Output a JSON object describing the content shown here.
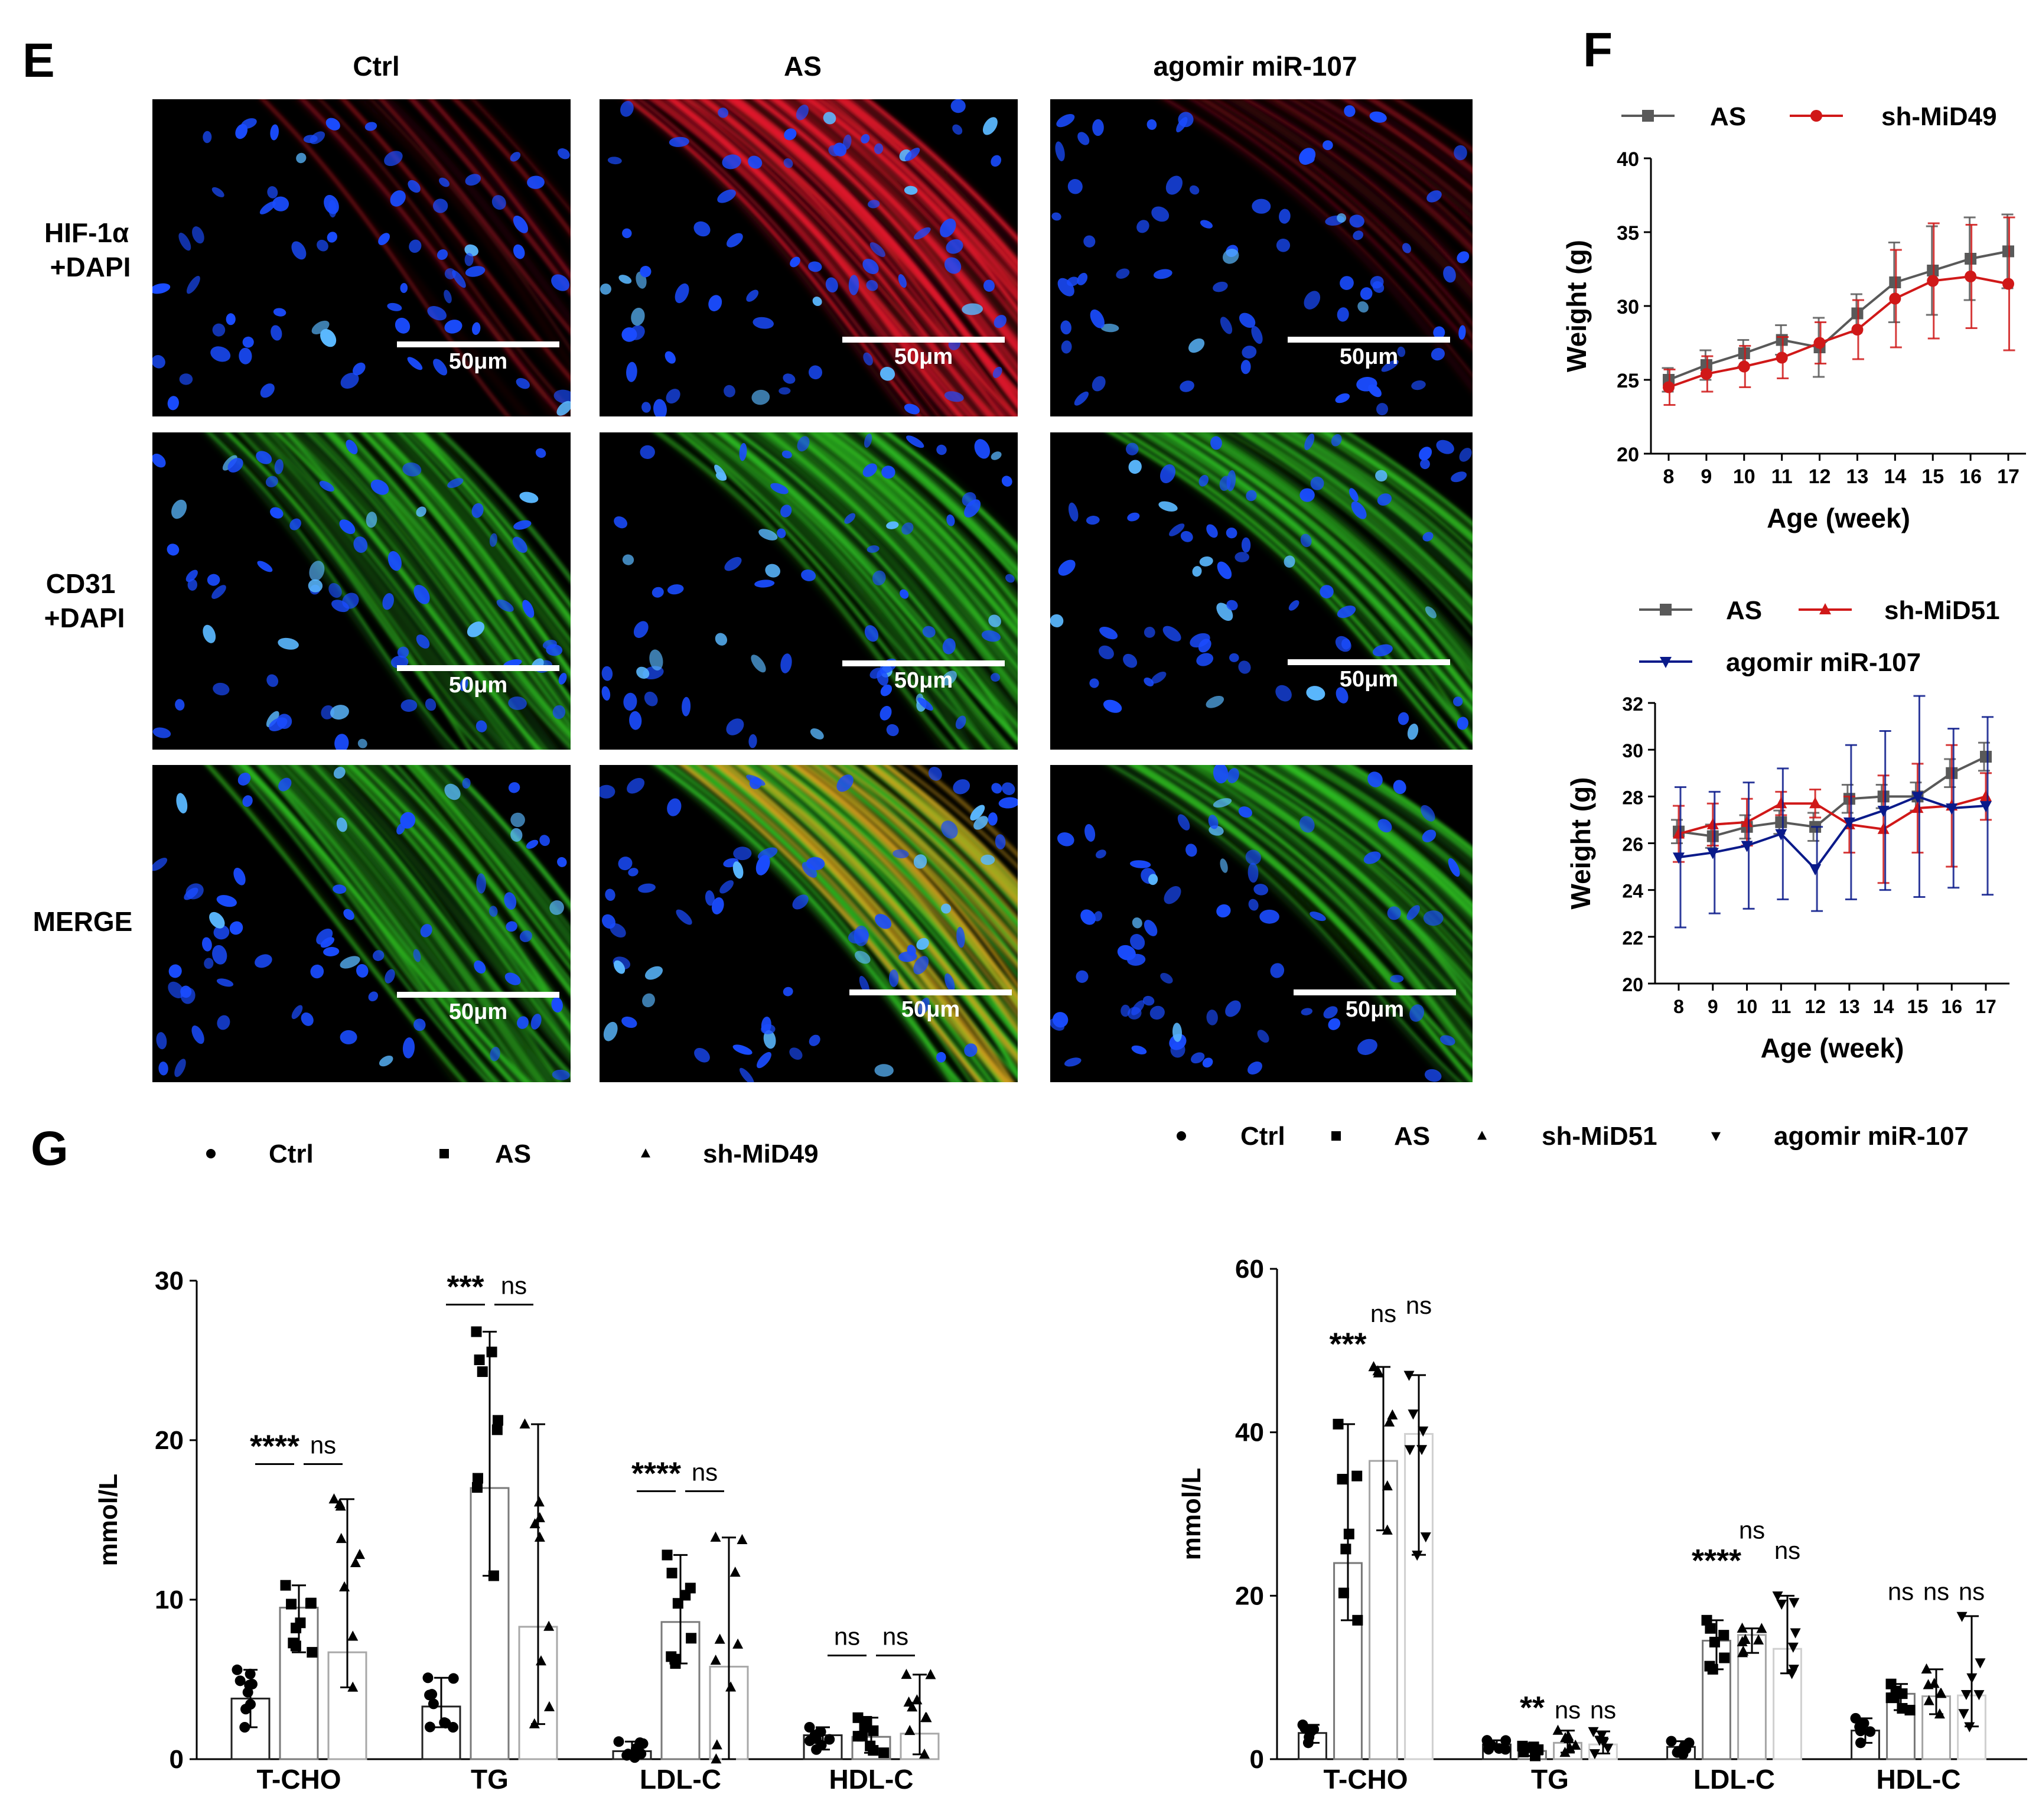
{
  "panel_E": {
    "letter": "E",
    "columns": [
      "Ctrl",
      "AS",
      "agomir miR-107"
    ],
    "rows": [
      "HIF-1α\n+DAPI",
      "CD31\n+DAPI",
      "MERGE"
    ],
    "scale_bar": "50μm"
  },
  "panel_F": {
    "letter": "F"
  },
  "panel_G": {
    "letter": "G",
    "significance": "ns"
  },
  "colors": {
    "gray": "#595959",
    "red": "#d01818",
    "blue": "#0a1a8a",
    "nucleus": "#1a4cff",
    "hif": "#e0182a",
    "cd31": "#2fc022",
    "merge": "#d9a21c"
  },
  "chart_data": [
    {
      "id": "F_top",
      "type": "line",
      "x": [
        8,
        9,
        10,
        11,
        12,
        13,
        14,
        15,
        16,
        17
      ],
      "series": [
        {
          "name": "AS",
          "color": "#595959",
          "marker": "square",
          "values": [
            25.0,
            26.0,
            26.8,
            27.7,
            27.2,
            29.5,
            31.6,
            32.4,
            33.2,
            33.7
          ],
          "errors": [
            0.8,
            1.0,
            0.9,
            1.0,
            2.0,
            1.3,
            2.7,
            3.0,
            2.8,
            2.5
          ]
        },
        {
          "name": "sh-MiD49",
          "color": "#d01818",
          "marker": "circle",
          "values": [
            24.5,
            25.4,
            25.9,
            26.5,
            27.5,
            28.4,
            30.5,
            31.7,
            32.0,
            31.5
          ],
          "errors": [
            1.2,
            1.2,
            1.4,
            1.4,
            1.4,
            2.0,
            3.3,
            3.9,
            3.5,
            4.5
          ]
        }
      ],
      "ylim": [
        20,
        40
      ],
      "yticks": [
        20,
        25,
        30,
        35,
        40
      ],
      "xlabel": "Age  (week)",
      "ylabel": "Weight  (g)"
    },
    {
      "id": "F_bottom",
      "type": "line",
      "x": [
        8,
        9,
        10,
        11,
        12,
        13,
        14,
        15,
        16,
        17
      ],
      "series": [
        {
          "name": "AS",
          "color": "#595959",
          "marker": "square",
          "values": [
            26.5,
            26.3,
            26.7,
            26.9,
            26.7,
            27.9,
            28.0,
            28.0,
            29.0,
            29.7
          ],
          "errors": [
            0.5,
            0.5,
            0.5,
            0.5,
            0.6,
            0.6,
            0.5,
            0.6,
            0.6,
            0.6
          ]
        },
        {
          "name": "sh-MiD51",
          "color": "#d01818",
          "marker": "triangle",
          "values": [
            26.4,
            26.8,
            26.9,
            27.7,
            27.7,
            26.8,
            26.6,
            27.5,
            27.6,
            28.0
          ],
          "errors": [
            1.2,
            0.9,
            1.0,
            0.5,
            0.6,
            1.2,
            2.3,
            1.9,
            2.6,
            1.0
          ]
        },
        {
          "name": "agomir miR-107",
          "color": "#0a1a8a",
          "marker": "triangle-down",
          "values": [
            25.4,
            25.6,
            25.9,
            26.4,
            24.9,
            26.9,
            27.4,
            28.0,
            27.5,
            27.6
          ],
          "errors": [
            3.0,
            2.6,
            2.7,
            2.8,
            1.8,
            3.3,
            3.4,
            4.3,
            3.4,
            3.8
          ]
        }
      ],
      "ylim": [
        20,
        32
      ],
      "yticks": [
        20,
        22,
        24,
        26,
        28,
        30,
        32
      ],
      "xlabel": "Age  (week)",
      "ylabel": "Weight  (g)"
    },
    {
      "id": "G_left",
      "type": "bar",
      "categories": [
        "T-CHO",
        "TG",
        "LDL-C",
        "HDL-C"
      ],
      "series": [
        {
          "name": "Ctrl",
          "marker": "circle",
          "bar_color": "#222222",
          "values": [
            3.8,
            3.3,
            0.5,
            1.5
          ],
          "lo": [
            2.0,
            2.0,
            0.1,
            0.6
          ],
          "hi": [
            5.6,
            5.1,
            1.1,
            2.0
          ]
        },
        {
          "name": "AS",
          "marker": "square",
          "bar_color": "#7a7a7a",
          "values": [
            9.5,
            17.0,
            8.6,
            1.4
          ],
          "lo": [
            6.7,
            11.5,
            6.0,
            0.4
          ],
          "hi": [
            10.9,
            26.8,
            12.8,
            2.6
          ]
        },
        {
          "name": "sh-MiD49",
          "marker": "triangle",
          "bar_color": "#a8a8a8",
          "values": [
            6.7,
            8.3,
            5.8,
            1.6
          ],
          "lo": [
            4.5,
            2.2,
            0.0,
            0.3
          ],
          "hi": [
            16.3,
            21.0,
            13.9,
            5.3
          ]
        }
      ],
      "ylim": [
        0,
        30
      ],
      "yticks": [
        0,
        10,
        20,
        30
      ],
      "ylabel": "mmol/L",
      "annotations": [
        {
          "text": "****",
          "category": 0,
          "from": 0,
          "to": 1,
          "level": 18.5
        },
        {
          "text": "ns",
          "category": 0,
          "from": 1,
          "to": 2,
          "level": 18.5
        },
        {
          "text": "***",
          "category": 1,
          "from": 0,
          "to": 1,
          "level": 28.5
        },
        {
          "text": "ns",
          "category": 1,
          "from": 1,
          "to": 2,
          "level": 28.5
        },
        {
          "text": "****",
          "category": 2,
          "from": 0,
          "to": 1,
          "level": 16.8
        },
        {
          "text": "ns",
          "category": 2,
          "from": 1,
          "to": 2,
          "level": 16.8
        },
        {
          "text": "ns",
          "category": 3,
          "from": 0,
          "to": 1,
          "level": 6.5
        },
        {
          "text": "ns",
          "category": 3,
          "from": 1,
          "to": 2,
          "level": 6.5
        }
      ]
    },
    {
      "id": "G_right",
      "type": "bar",
      "categories": [
        "T-CHO",
        "TG",
        "LDL-C",
        "HDL-C"
      ],
      "series": [
        {
          "name": "Ctrl",
          "marker": "circle",
          "bar_color": "#222222",
          "values": [
            3.2,
            1.8,
            1.5,
            3.5
          ],
          "lo": [
            2.0,
            1.2,
            0.6,
            2.0
          ],
          "hi": [
            4.2,
            2.3,
            2.2,
            5.0
          ]
        },
        {
          "name": "AS",
          "marker": "square",
          "bar_color": "#777777",
          "values": [
            24.0,
            1.0,
            14.5,
            8.0
          ],
          "lo": [
            17.0,
            0.4,
            11.0,
            6.0
          ],
          "hi": [
            41.0,
            1.6,
            17.0,
            9.2
          ]
        },
        {
          "name": "sh-MiD51",
          "marker": "triangle",
          "bar_color": "#a5a5a5",
          "values": [
            36.5,
            2.0,
            15.2,
            7.7
          ],
          "lo": [
            28.0,
            0.8,
            13.0,
            5.5
          ],
          "hi": [
            48.0,
            3.5,
            16.0,
            11.0
          ]
        },
        {
          "name": "agomir miR-107",
          "marker": "triangle-down",
          "bar_color": "#d0d0d0",
          "values": [
            39.8,
            1.8,
            13.5,
            7.8
          ],
          "lo": [
            25.0,
            0.7,
            10.5,
            4.0
          ],
          "hi": [
            47.0,
            3.4,
            20.0,
            17.5
          ]
        }
      ],
      "ylim": [
        0,
        60
      ],
      "yticks": [
        0,
        20,
        40,
        60
      ],
      "ylabel": "mmol/L",
      "annotations": [
        {
          "text": "***",
          "category": 0,
          "series": 1,
          "level": 49.5
        },
        {
          "text": "ns",
          "category": 0,
          "series": 2,
          "level": 53.5
        },
        {
          "text": "ns",
          "category": 0,
          "series": 3,
          "level": 54.5
        },
        {
          "text": "**",
          "category": 1,
          "series": 1,
          "level": 5.0
        },
        {
          "text": "ns",
          "category": 1,
          "series": 2,
          "level": 5.0
        },
        {
          "text": "ns",
          "category": 1,
          "series": 3,
          "level": 5.0
        },
        {
          "text": "****",
          "category": 2,
          "series": 1,
          "level": 23.0
        },
        {
          "text": "ns",
          "category": 2,
          "series": 2,
          "level": 27.0
        },
        {
          "text": "ns",
          "category": 2,
          "series": 3,
          "level": 24.5
        },
        {
          "text": "ns",
          "category": 3,
          "series": 1,
          "level": 19.5
        },
        {
          "text": "ns",
          "category": 3,
          "series": 2,
          "level": 19.5
        },
        {
          "text": "ns",
          "category": 3,
          "series": 3,
          "level": 19.5
        }
      ]
    }
  ]
}
